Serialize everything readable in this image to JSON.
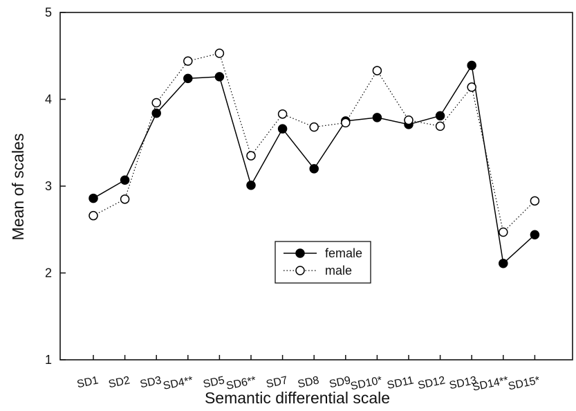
{
  "chart_data": {
    "type": "line",
    "title": "",
    "xlabel": "Semantic differential scale",
    "ylabel": "Mean of scales",
    "categories": [
      "SD1",
      "SD2",
      "SD3",
      "SD4**",
      "SD5",
      "SD6**",
      "SD7",
      "SD8",
      "SD9",
      "SD10*",
      "SD11",
      "SD12",
      "SD13",
      "SD14**",
      "SD15*"
    ],
    "ylim": [
      1,
      5
    ],
    "yticks": [
      "1",
      "2",
      "3",
      "4",
      "5"
    ],
    "grid": false,
    "legend": "center",
    "series": [
      {
        "name": "female",
        "marker": "filled-circle",
        "line": "solid",
        "color": "#000000",
        "values": [
          2.86,
          3.07,
          3.84,
          4.24,
          4.26,
          3.01,
          3.66,
          3.2,
          3.75,
          3.79,
          3.71,
          3.81,
          4.39,
          2.11,
          2.44
        ]
      },
      {
        "name": "male",
        "marker": "open-circle",
        "line": "dotted",
        "color": "#000000",
        "values": [
          2.66,
          2.85,
          3.96,
          4.44,
          4.53,
          3.35,
          3.83,
          3.68,
          3.73,
          4.33,
          3.76,
          3.69,
          4.14,
          2.47,
          2.83
        ]
      }
    ]
  }
}
